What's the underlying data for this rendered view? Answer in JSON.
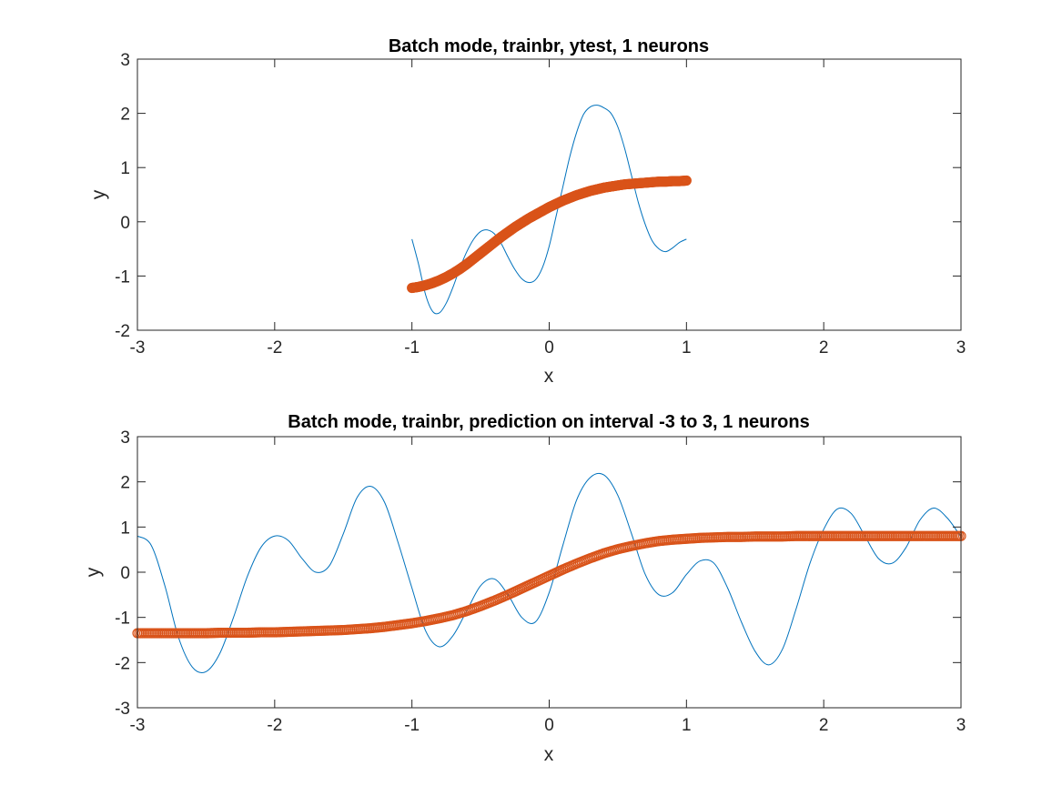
{
  "figure": {
    "background": "#ffffff"
  },
  "chart_data": [
    {
      "type": "line",
      "title": "Batch mode, trainbr, ytest, 1 neurons",
      "xlabel": "x",
      "ylabel": "y",
      "xlim": [
        -3,
        3
      ],
      "ylim": [
        -2,
        3
      ],
      "xticks": [
        -3,
        -2,
        -1,
        0,
        1,
        2,
        3
      ],
      "yticks": [
        -2,
        -1,
        0,
        1,
        2,
        3
      ],
      "grid": false,
      "legend": "none",
      "series": [
        {
          "style": "line",
          "color": "#0072BD",
          "x": [
            -1.0,
            -0.95,
            -0.9,
            -0.85,
            -0.8,
            -0.75,
            -0.7,
            -0.65,
            -0.6,
            -0.55,
            -0.5,
            -0.45,
            -0.4,
            -0.35,
            -0.3,
            -0.25,
            -0.2,
            -0.15,
            -0.1,
            -0.05,
            0.0,
            0.05,
            0.1,
            0.15,
            0.2,
            0.25,
            0.3,
            0.35,
            0.4,
            0.45,
            0.5,
            0.55,
            0.6,
            0.65,
            0.7,
            0.75,
            0.8,
            0.85,
            0.9,
            0.95,
            1.0
          ],
          "y": [
            -0.32,
            -0.8,
            -1.35,
            -1.65,
            -1.68,
            -1.5,
            -1.2,
            -0.85,
            -0.55,
            -0.32,
            -0.18,
            -0.15,
            -0.22,
            -0.4,
            -0.65,
            -0.88,
            -1.05,
            -1.12,
            -1.07,
            -0.85,
            -0.45,
            0.1,
            0.65,
            1.2,
            1.65,
            1.98,
            2.12,
            2.15,
            2.1,
            2.0,
            1.75,
            1.35,
            0.85,
            0.35,
            -0.05,
            -0.35,
            -0.5,
            -0.55,
            -0.48,
            -0.38,
            -0.32
          ]
        },
        {
          "style": "markers",
          "marker": "o",
          "color": "#D95319",
          "x": [
            -1.0,
            -0.95,
            -0.9,
            -0.85,
            -0.8,
            -0.75,
            -0.7,
            -0.65,
            -0.6,
            -0.55,
            -0.5,
            -0.45,
            -0.4,
            -0.35,
            -0.3,
            -0.25,
            -0.2,
            -0.15,
            -0.1,
            -0.05,
            0.0,
            0.05,
            0.1,
            0.15,
            0.2,
            0.25,
            0.3,
            0.35,
            0.4,
            0.45,
            0.5,
            0.55,
            0.6,
            0.65,
            0.7,
            0.75,
            0.8,
            0.85,
            0.9,
            0.95,
            1.0
          ],
          "y": [
            -1.22,
            -1.2,
            -1.17,
            -1.13,
            -1.08,
            -1.02,
            -0.95,
            -0.87,
            -0.78,
            -0.68,
            -0.58,
            -0.48,
            -0.38,
            -0.28,
            -0.19,
            -0.1,
            -0.02,
            0.06,
            0.13,
            0.2,
            0.27,
            0.33,
            0.39,
            0.44,
            0.49,
            0.53,
            0.57,
            0.6,
            0.63,
            0.65,
            0.67,
            0.69,
            0.7,
            0.71,
            0.72,
            0.73,
            0.74,
            0.74,
            0.75,
            0.75,
            0.76
          ]
        }
      ]
    },
    {
      "type": "line",
      "title": "Batch mode, trainbr, prediction on interval -3 to 3, 1 neurons",
      "xlabel": "x",
      "ylabel": "y",
      "xlim": [
        -3,
        3
      ],
      "ylim": [
        -3,
        3
      ],
      "xticks": [
        -3,
        -2,
        -1,
        0,
        1,
        2,
        3
      ],
      "yticks": [
        -3,
        -2,
        -1,
        0,
        1,
        2,
        3
      ],
      "grid": false,
      "legend": "none",
      "series": [
        {
          "style": "line",
          "color": "#0072BD",
          "x": [
            -3.0,
            -2.9,
            -2.8,
            -2.7,
            -2.6,
            -2.5,
            -2.4,
            -2.3,
            -2.2,
            -2.1,
            -2.0,
            -1.9,
            -1.8,
            -1.7,
            -1.6,
            -1.5,
            -1.4,
            -1.3,
            -1.2,
            -1.1,
            -1.0,
            -0.9,
            -0.8,
            -0.7,
            -0.6,
            -0.5,
            -0.4,
            -0.3,
            -0.2,
            -0.1,
            0.0,
            0.1,
            0.2,
            0.3,
            0.4,
            0.5,
            0.6,
            0.7,
            0.8,
            0.9,
            1.0,
            1.1,
            1.2,
            1.3,
            1.4,
            1.5,
            1.6,
            1.7,
            1.8,
            1.9,
            2.0,
            2.1,
            2.2,
            2.3,
            2.4,
            2.5,
            2.6,
            2.7,
            2.8,
            2.9,
            3.0
          ],
          "y": [
            0.8,
            0.6,
            -0.3,
            -1.45,
            -2.1,
            -2.2,
            -1.8,
            -1.0,
            -0.1,
            0.55,
            0.8,
            0.7,
            0.3,
            0.0,
            0.15,
            0.85,
            1.65,
            1.9,
            1.55,
            0.65,
            -0.35,
            -1.3,
            -1.65,
            -1.4,
            -0.85,
            -0.3,
            -0.15,
            -0.5,
            -1.0,
            -1.1,
            -0.45,
            0.6,
            1.6,
            2.1,
            2.15,
            1.7,
            0.85,
            -0.05,
            -0.5,
            -0.45,
            -0.05,
            0.25,
            0.2,
            -0.35,
            -1.1,
            -1.75,
            -2.05,
            -1.7,
            -0.8,
            0.2,
            0.95,
            1.4,
            1.3,
            0.8,
            0.3,
            0.2,
            0.55,
            1.15,
            1.42,
            1.2,
            0.78
          ]
        },
        {
          "style": "markers",
          "marker": "o",
          "color": "#D95319",
          "x": [
            -3.0,
            -2.9,
            -2.8,
            -2.7,
            -2.6,
            -2.5,
            -2.4,
            -2.3,
            -2.2,
            -2.1,
            -2.0,
            -1.9,
            -1.8,
            -1.7,
            -1.6,
            -1.5,
            -1.4,
            -1.3,
            -1.2,
            -1.1,
            -1.0,
            -0.9,
            -0.8,
            -0.7,
            -0.6,
            -0.5,
            -0.4,
            -0.3,
            -0.2,
            -0.1,
            0.0,
            0.1,
            0.2,
            0.3,
            0.4,
            0.5,
            0.6,
            0.7,
            0.8,
            0.9,
            1.0,
            1.1,
            1.2,
            1.3,
            1.4,
            1.5,
            1.6,
            1.7,
            1.8,
            1.9,
            2.0,
            2.1,
            2.2,
            2.3,
            2.4,
            2.5,
            2.6,
            2.7,
            2.8,
            2.9,
            3.0
          ],
          "y": [
            -1.35,
            -1.35,
            -1.35,
            -1.35,
            -1.35,
            -1.35,
            -1.34,
            -1.34,
            -1.34,
            -1.33,
            -1.33,
            -1.32,
            -1.31,
            -1.3,
            -1.29,
            -1.28,
            -1.26,
            -1.24,
            -1.21,
            -1.17,
            -1.13,
            -1.08,
            -1.02,
            -0.95,
            -0.86,
            -0.75,
            -0.63,
            -0.5,
            -0.36,
            -0.22,
            -0.08,
            0.06,
            0.19,
            0.31,
            0.42,
            0.51,
            0.58,
            0.64,
            0.69,
            0.72,
            0.74,
            0.76,
            0.77,
            0.78,
            0.78,
            0.79,
            0.79,
            0.79,
            0.8,
            0.8,
            0.8,
            0.8,
            0.8,
            0.8,
            0.8,
            0.8,
            0.8,
            0.8,
            0.8,
            0.8,
            0.8
          ]
        }
      ]
    }
  ]
}
